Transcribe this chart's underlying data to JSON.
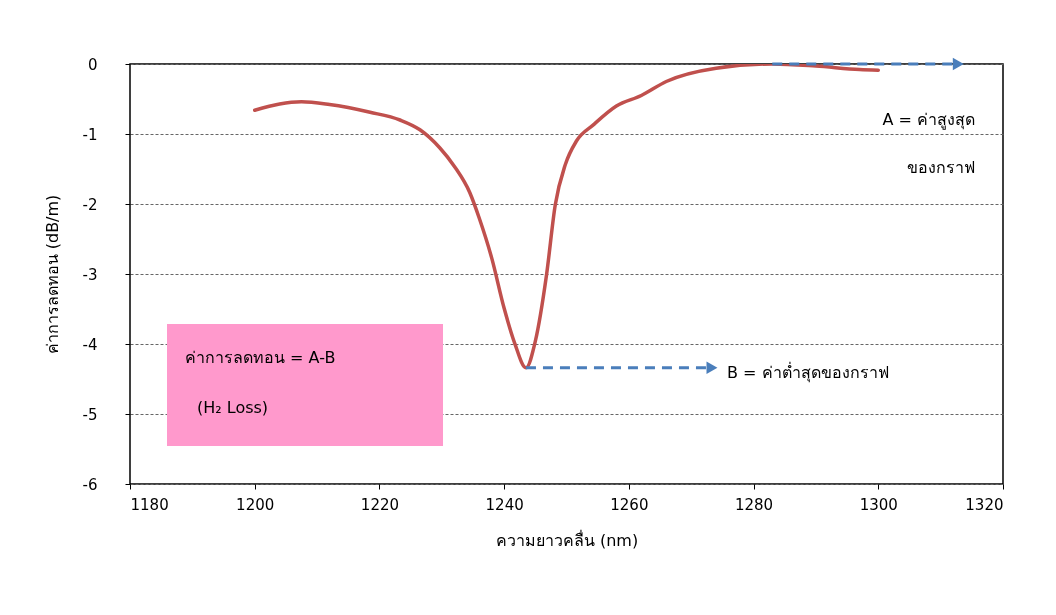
{
  "chart_data": {
    "type": "line",
    "xlabel": "ความยาวคลื่น (nm)",
    "ylabel": "ค่าการลดทอน (dB/m)",
    "x": [
      1200,
      1204,
      1207.5,
      1212,
      1218.5,
      1223.3,
      1226.5,
      1229.7,
      1232,
      1234.5,
      1236,
      1238,
      1240,
      1241.7,
      1243.5,
      1245,
      1246.8,
      1248.2,
      1249.8,
      1251.6,
      1254.3,
      1258,
      1262,
      1266,
      1274,
      1283,
      1290,
      1297,
      1300
    ],
    "series": [
      {
        "color": "#c0504d",
        "values": [
          -0.66,
          -0.57,
          -0.54,
          -0.58,
          -0.69,
          -0.8,
          -0.94,
          -1.2,
          -1.46,
          -1.84,
          -2.2,
          -2.77,
          -3.49,
          -3.99,
          -4.34,
          -3.96,
          -3.01,
          -2.01,
          -1.44,
          -1.1,
          -0.87,
          -0.6,
          -0.45,
          -0.25,
          -0.06,
          0,
          -0.03,
          -0.08,
          -0.09
        ]
      }
    ],
    "xlim": [
      1180,
      1320
    ],
    "xticks": [
      1180,
      1200,
      1220,
      1240,
      1260,
      1280,
      1300,
      1320
    ],
    "ylim": [
      -6,
      0
    ],
    "yticks": [
      -6,
      -5,
      -4,
      -3,
      -2,
      -1,
      0
    ],
    "grid": "y",
    "annotations": [
      "A = ค่าสูงสุด",
      "ของกราฟ",
      {
        "text": "B = ค่าต่ำสุดของกราฟ",
        "x": 1243.5,
        "y": -4.34
      },
      "ค่าการลดทอน = A-B",
      "(H₂ Loss)"
    ]
  }
}
